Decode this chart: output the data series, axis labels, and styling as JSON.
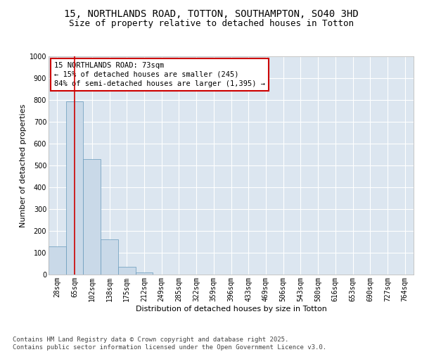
{
  "title_line1": "15, NORTHLANDS ROAD, TOTTON, SOUTHAMPTON, SO40 3HD",
  "title_line2": "Size of property relative to detached houses in Totton",
  "xlabel": "Distribution of detached houses by size in Totton",
  "ylabel": "Number of detached properties",
  "categories": [
    "28sqm",
    "65sqm",
    "102sqm",
    "138sqm",
    "175sqm",
    "212sqm",
    "249sqm",
    "285sqm",
    "322sqm",
    "359sqm",
    "396sqm",
    "433sqm",
    "469sqm",
    "506sqm",
    "543sqm",
    "580sqm",
    "616sqm",
    "653sqm",
    "690sqm",
    "727sqm",
    "764sqm"
  ],
  "values": [
    130,
    795,
    530,
    160,
    35,
    10,
    0,
    0,
    0,
    0,
    0,
    0,
    0,
    0,
    0,
    0,
    0,
    0,
    0,
    0,
    0
  ],
  "bar_color": "#c9d9e8",
  "bar_edge_color": "#6699bb",
  "vline_x": 1,
  "vline_color": "#cc0000",
  "ylim": [
    0,
    1000
  ],
  "yticks": [
    0,
    100,
    200,
    300,
    400,
    500,
    600,
    700,
    800,
    900,
    1000
  ],
  "annotation_box_text": "15 NORTHLANDS ROAD: 73sqm\n← 15% of detached houses are smaller (245)\n84% of semi-detached houses are larger (1,395) →",
  "annotation_box_color": "#cc0000",
  "annotation_box_fill": "#ffffff",
  "background_color": "#ffffff",
  "plot_bg_color": "#dce6f0",
  "grid_color": "#ffffff",
  "footnote": "Contains HM Land Registry data © Crown copyright and database right 2025.\nContains public sector information licensed under the Open Government Licence v3.0.",
  "title_fontsize": 10,
  "subtitle_fontsize": 9,
  "axis_label_fontsize": 8,
  "tick_fontsize": 7,
  "annotation_fontsize": 7.5,
  "footnote_fontsize": 6.5
}
